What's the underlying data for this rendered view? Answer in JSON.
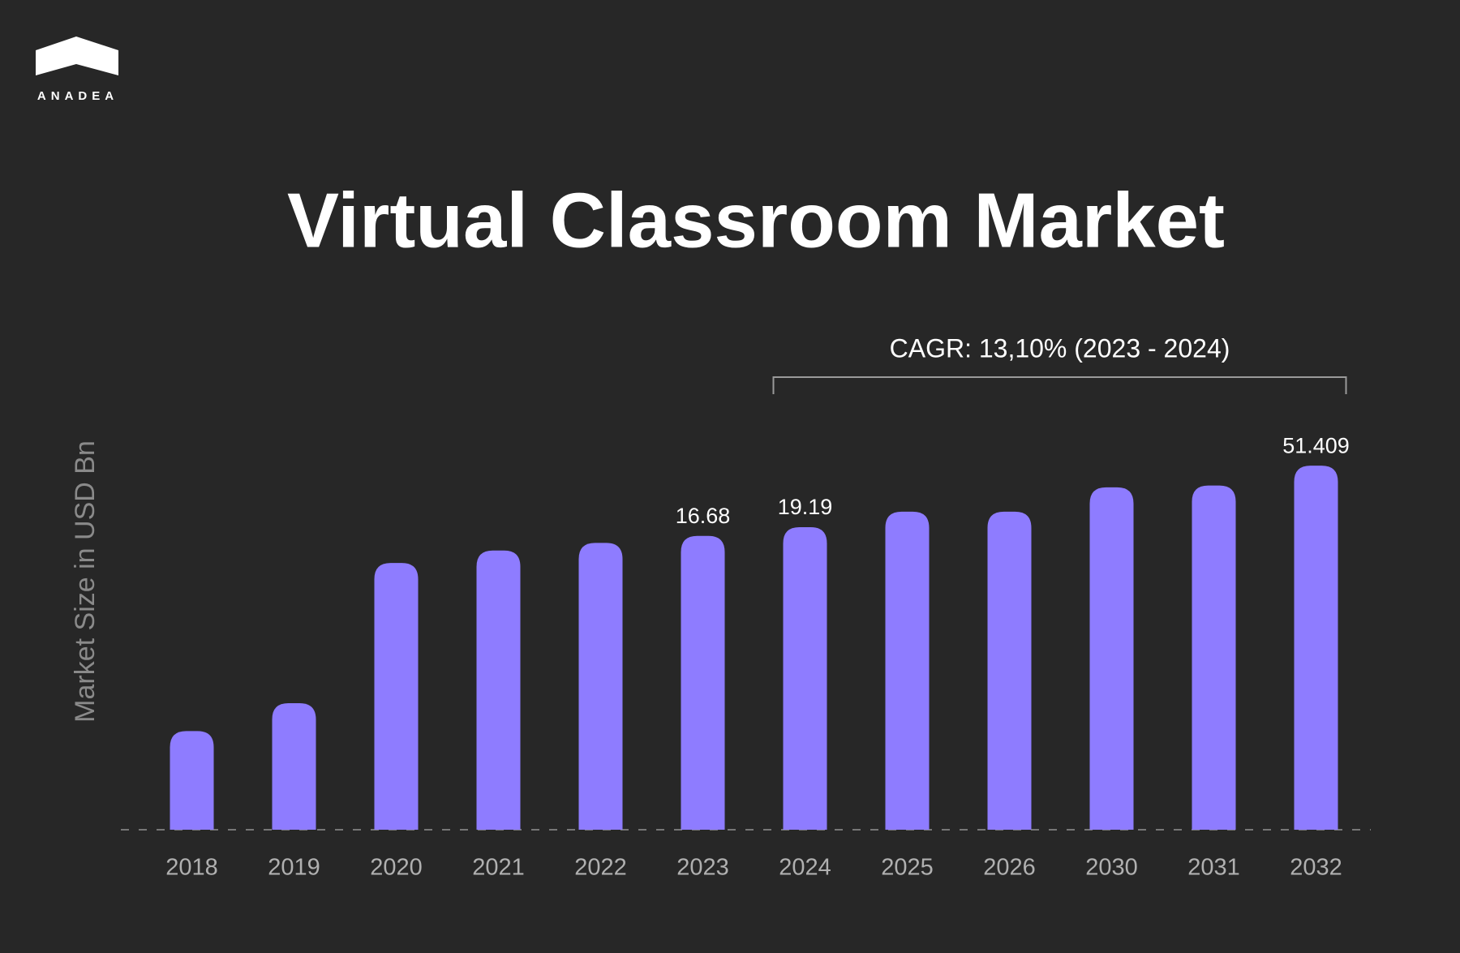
{
  "brand": "ANADEA",
  "chart_data": {
    "type": "bar",
    "title": "Virtual Classroom Market",
    "y_axis_label": "Market Size in USD Bn",
    "categories": [
      "2018",
      "2019",
      "2020",
      "2021",
      "2022",
      "2023",
      "2024",
      "2025",
      "2026",
      "2030",
      "2031",
      "2032"
    ],
    "values": [
      0.73,
      1.14,
      10.8,
      13.2,
      14.9,
      16.68,
      19.19,
      24.6,
      24.6,
      36.3,
      37.4,
      51.409
    ],
    "value_labels": [
      null,
      null,
      null,
      null,
      null,
      "16.68",
      "19.19",
      null,
      null,
      null,
      null,
      "51.409"
    ],
    "color": "#8e7cff",
    "log_scale": true,
    "ylim": [
      0.15,
      100
    ],
    "annotation": {
      "text": "CAGR: 13,10% (2023 - 2024)",
      "from": "2024",
      "to": "2032"
    }
  }
}
